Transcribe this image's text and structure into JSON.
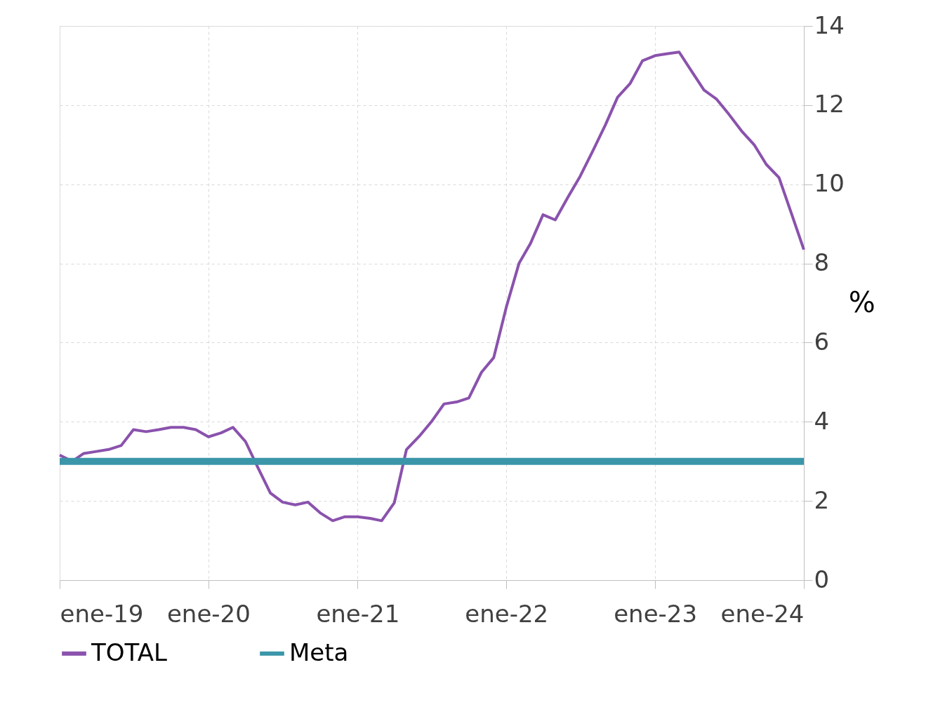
{
  "chart_data": {
    "type": "line",
    "ylabel": "%",
    "x": [
      "2019-01",
      "2019-02",
      "2019-03",
      "2019-04",
      "2019-05",
      "2019-06",
      "2019-07",
      "2019-08",
      "2019-09",
      "2019-10",
      "2019-11",
      "2019-12",
      "2020-01",
      "2020-02",
      "2020-03",
      "2020-04",
      "2020-05",
      "2020-06",
      "2020-07",
      "2020-08",
      "2020-09",
      "2020-10",
      "2020-11",
      "2020-12",
      "2021-01",
      "2021-02",
      "2021-03",
      "2021-04",
      "2021-05",
      "2021-06",
      "2021-07",
      "2021-08",
      "2021-09",
      "2021-10",
      "2021-11",
      "2021-12",
      "2022-01",
      "2022-02",
      "2022-03",
      "2022-04",
      "2022-05",
      "2022-06",
      "2022-07",
      "2022-08",
      "2022-09",
      "2022-10",
      "2022-11",
      "2022-12",
      "2023-01",
      "2023-02",
      "2023-03",
      "2023-04",
      "2023-05",
      "2023-06",
      "2023-07",
      "2023-08",
      "2023-09",
      "2023-10",
      "2023-11",
      "2023-12",
      "2024-01"
    ],
    "series": [
      {
        "name": "TOTAL",
        "color": "#8a52ad",
        "values": [
          3.16,
          3.0,
          3.2,
          3.25,
          3.3,
          3.4,
          3.8,
          3.75,
          3.8,
          3.86,
          3.86,
          3.8,
          3.62,
          3.72,
          3.86,
          3.5,
          2.85,
          2.2,
          1.97,
          1.9,
          1.97,
          1.7,
          1.5,
          1.6,
          1.6,
          1.56,
          1.5,
          1.95,
          3.3,
          3.63,
          4.0,
          4.45,
          4.5,
          4.6,
          5.25,
          5.62,
          6.9,
          8.0,
          8.5,
          9.23,
          9.1,
          9.67,
          10.2,
          10.84,
          11.5,
          12.2,
          12.55,
          13.12,
          13.25,
          13.3,
          13.34,
          12.85,
          12.38,
          12.15,
          11.77,
          11.35,
          11.0,
          10.5,
          10.17,
          9.28,
          8.35
        ]
      },
      {
        "name": "Meta",
        "color": "#3a96a8",
        "x": [
          "2019-01",
          "2024-01"
        ],
        "values": [
          3,
          3
        ]
      }
    ],
    "xlim": [
      "2019-01",
      "2024-01"
    ],
    "xticks": [
      {
        "value": "2019-01",
        "label": "ene-19"
      },
      {
        "value": "2020-01",
        "label": "ene-20"
      },
      {
        "value": "2021-01",
        "label": "ene-21"
      },
      {
        "value": "2022-01",
        "label": "ene-22"
      },
      {
        "value": "2023-01",
        "label": "ene-23"
      },
      {
        "value": "2024-01",
        "label": "ene-24"
      }
    ],
    "ylim": [
      0,
      14
    ],
    "yticks": [
      0,
      2,
      4,
      6,
      8,
      10,
      12,
      14
    ],
    "grid": true,
    "legend": "bottom",
    "line_style": "solid",
    "marker": "none"
  }
}
